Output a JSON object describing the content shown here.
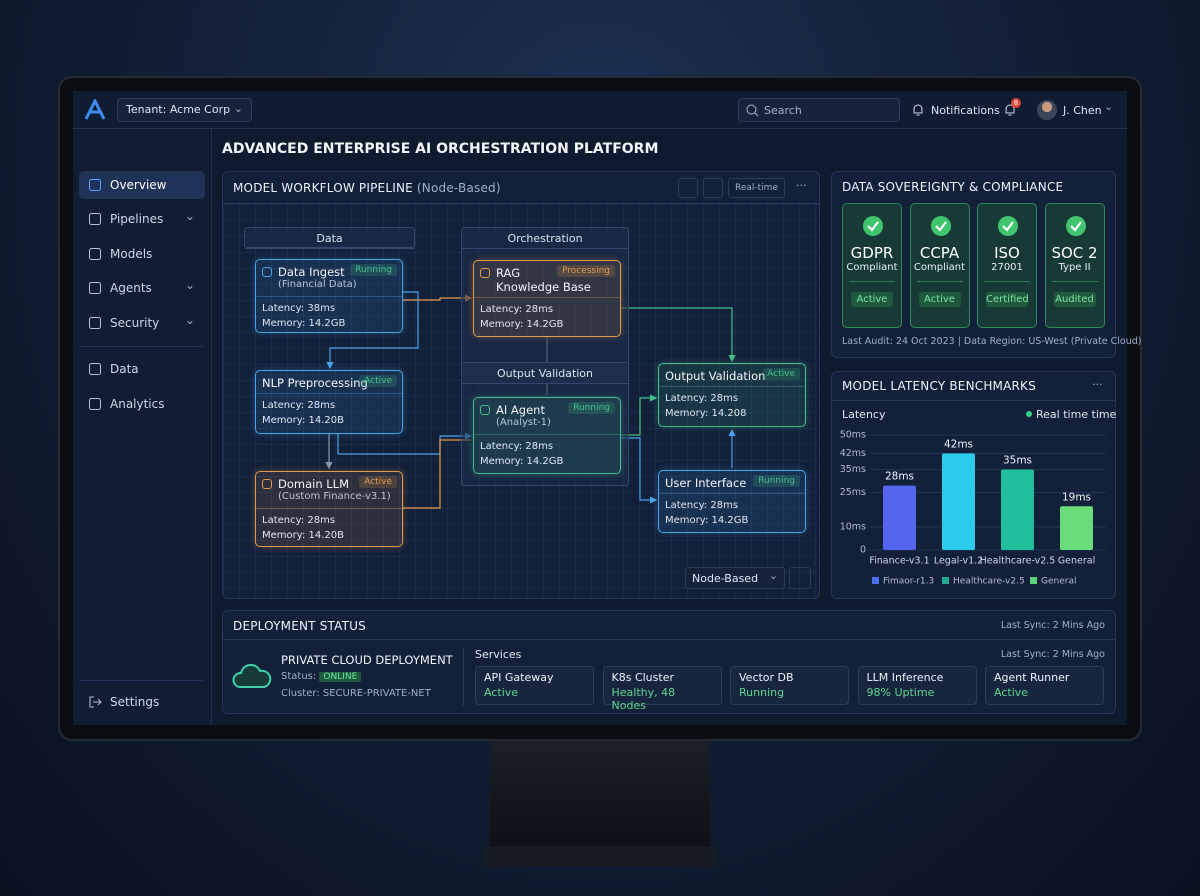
{
  "header": {
    "tenant": "Tenant: Acme Corp",
    "search_placeholder": "Search",
    "notifications": "Notifications",
    "badge": "8",
    "user": "J. Chen"
  },
  "sidebar": {
    "items": [
      {
        "label": "Overview",
        "expandable": false,
        "active": true
      },
      {
        "label": "Pipelines",
        "expandable": true,
        "active": false
      },
      {
        "label": "Models",
        "expandable": false,
        "active": false
      },
      {
        "label": "Agents",
        "expandable": true,
        "active": false
      },
      {
        "label": "Security",
        "expandable": true,
        "active": false
      },
      {
        "label": "Data",
        "expandable": false,
        "active": false
      },
      {
        "label": "Analytics",
        "expandable": false,
        "active": false
      }
    ],
    "settings": "Settings"
  },
  "page_title": "ADVANCED ENTERPRISE AI ORCHESTRATION PLATFORM",
  "pipeline": {
    "title": "MODEL WORKFLOW PIPELINE",
    "subtitle": "(Node-Based)",
    "mode_button": "Real-time",
    "view_select": "Node-Based",
    "groups": [
      "Data",
      "Orchestration",
      "Output Validation"
    ],
    "nodes": [
      {
        "name": "Data Ingest",
        "detail": "(Financial Data)",
        "status": "Running",
        "latency": "Latency: 38ms",
        "memory": "Memory: 14.2GB",
        "color": "#4aa3e8",
        "status_color": "#45c08a"
      },
      {
        "name": "NLP Preprocessing",
        "status": "Active",
        "latency": "Latency: 28ms",
        "memory": "Memory: 14.20B",
        "color": "#4aa3e8",
        "status_color": "#45c08a"
      },
      {
        "name": "Domain LLM",
        "detail": "(Custom Finance-v3.1)",
        "status": "Active",
        "latency": "Latency: 28ms",
        "memory": "Memory: 14.20B",
        "color": "#e39a4a",
        "status_color": "#e39a4a"
      },
      {
        "name": "RAG",
        "detail": "Knowledge Base",
        "status": "Processing",
        "latency": "Latency: 28ms",
        "memory": "Memory: 14.2GB",
        "color": "#e39a4a",
        "status_color": "#e39a4a"
      },
      {
        "name": "AI Agent",
        "detail": "(Analyst-1)",
        "status": "Running",
        "latency": "Latency: 28ms",
        "memory": "Memory: 14.2GB",
        "color": "#45c08a",
        "status_color": "#45c08a"
      },
      {
        "name": "Output Validation",
        "status": "Active",
        "latency": "Latency: 28ms",
        "memory": "Memory: 14.208",
        "color": "#45c08a",
        "status_color": "#45c08a"
      },
      {
        "name": "User Interface",
        "status": "Running",
        "latency": "Latency: 28ms",
        "memory": "Memory: 14.2GB",
        "color": "#4aa3e8",
        "status_color": "#45c08a"
      }
    ]
  },
  "compliance": {
    "title": "DATA SOVEREIGNTY & COMPLIANCE",
    "cards": [
      {
        "name": "GDPR",
        "detail": "Compliant",
        "status": "Active"
      },
      {
        "name": "CCPA",
        "detail": "Compliant",
        "status": "Active"
      },
      {
        "name": "ISO",
        "detail": "27001",
        "status": "Certified"
      },
      {
        "name": "SOC 2",
        "detail": "Type II",
        "status": "Audited"
      }
    ],
    "footer": "Last Audit: 24 Oct 2023 | Data Region: US-West (Private Cloud)"
  },
  "latency_chart": {
    "type": "bar",
    "title": "MODEL LATENCY BENCHMARKS",
    "y_label": "Latency",
    "legend_top": "Real time time",
    "legend_top_color": "#3ecf8e",
    "categories": [
      "Finance-v3.1",
      "Legal-v1.2",
      "Healthcare-v2.5",
      "General"
    ],
    "values": [
      28,
      42,
      35,
      19
    ],
    "value_labels": [
      "28ms",
      "42ms",
      "35ms",
      "19ms"
    ],
    "colors": [
      "#5566ee",
      "#2ccbeb",
      "#1fbf9c",
      "#6bdc7c"
    ],
    "ylim": [
      0,
      50
    ],
    "yticks": [
      0,
      {
        "value": 10,
        "label": "10ms"
      },
      {
        "value": 25,
        "label": "25ms"
      },
      {
        "value": 35,
        "label": "35ms"
      },
      {
        "value": 42,
        "label": "42ms"
      },
      {
        "value": 50,
        "label": "50ms"
      }
    ],
    "legend": [
      {
        "name": "Fimaor-r1.3",
        "color": "#4f6cf0"
      },
      {
        "name": "Healthcare-v2.5",
        "color": "#20a890"
      },
      {
        "name": "General",
        "color": "#5fd07a"
      }
    ]
  },
  "deployment": {
    "title": "DEPLOYMENT STATUS",
    "last_sync": "Last Sync: 2 Mins Ago",
    "name": "PRIVATE CLOUD DEPLOYMENT",
    "status_label": "Status:",
    "status": "ONLINE",
    "cluster": "Cluster: SECURE-PRIVATE-NET",
    "services_title": "Services",
    "services_sync": "Last Sync: 2 Mins Ago",
    "services": [
      {
        "name": "API Gateway",
        "status": "Active"
      },
      {
        "name": "K8s Cluster",
        "status": "Healthy, 48 Nodes"
      },
      {
        "name": "Vector DB",
        "status": "Running"
      },
      {
        "name": "LLM Inference",
        "status": "98% Uptime"
      },
      {
        "name": "Agent Runner",
        "status": "Active"
      }
    ]
  }
}
